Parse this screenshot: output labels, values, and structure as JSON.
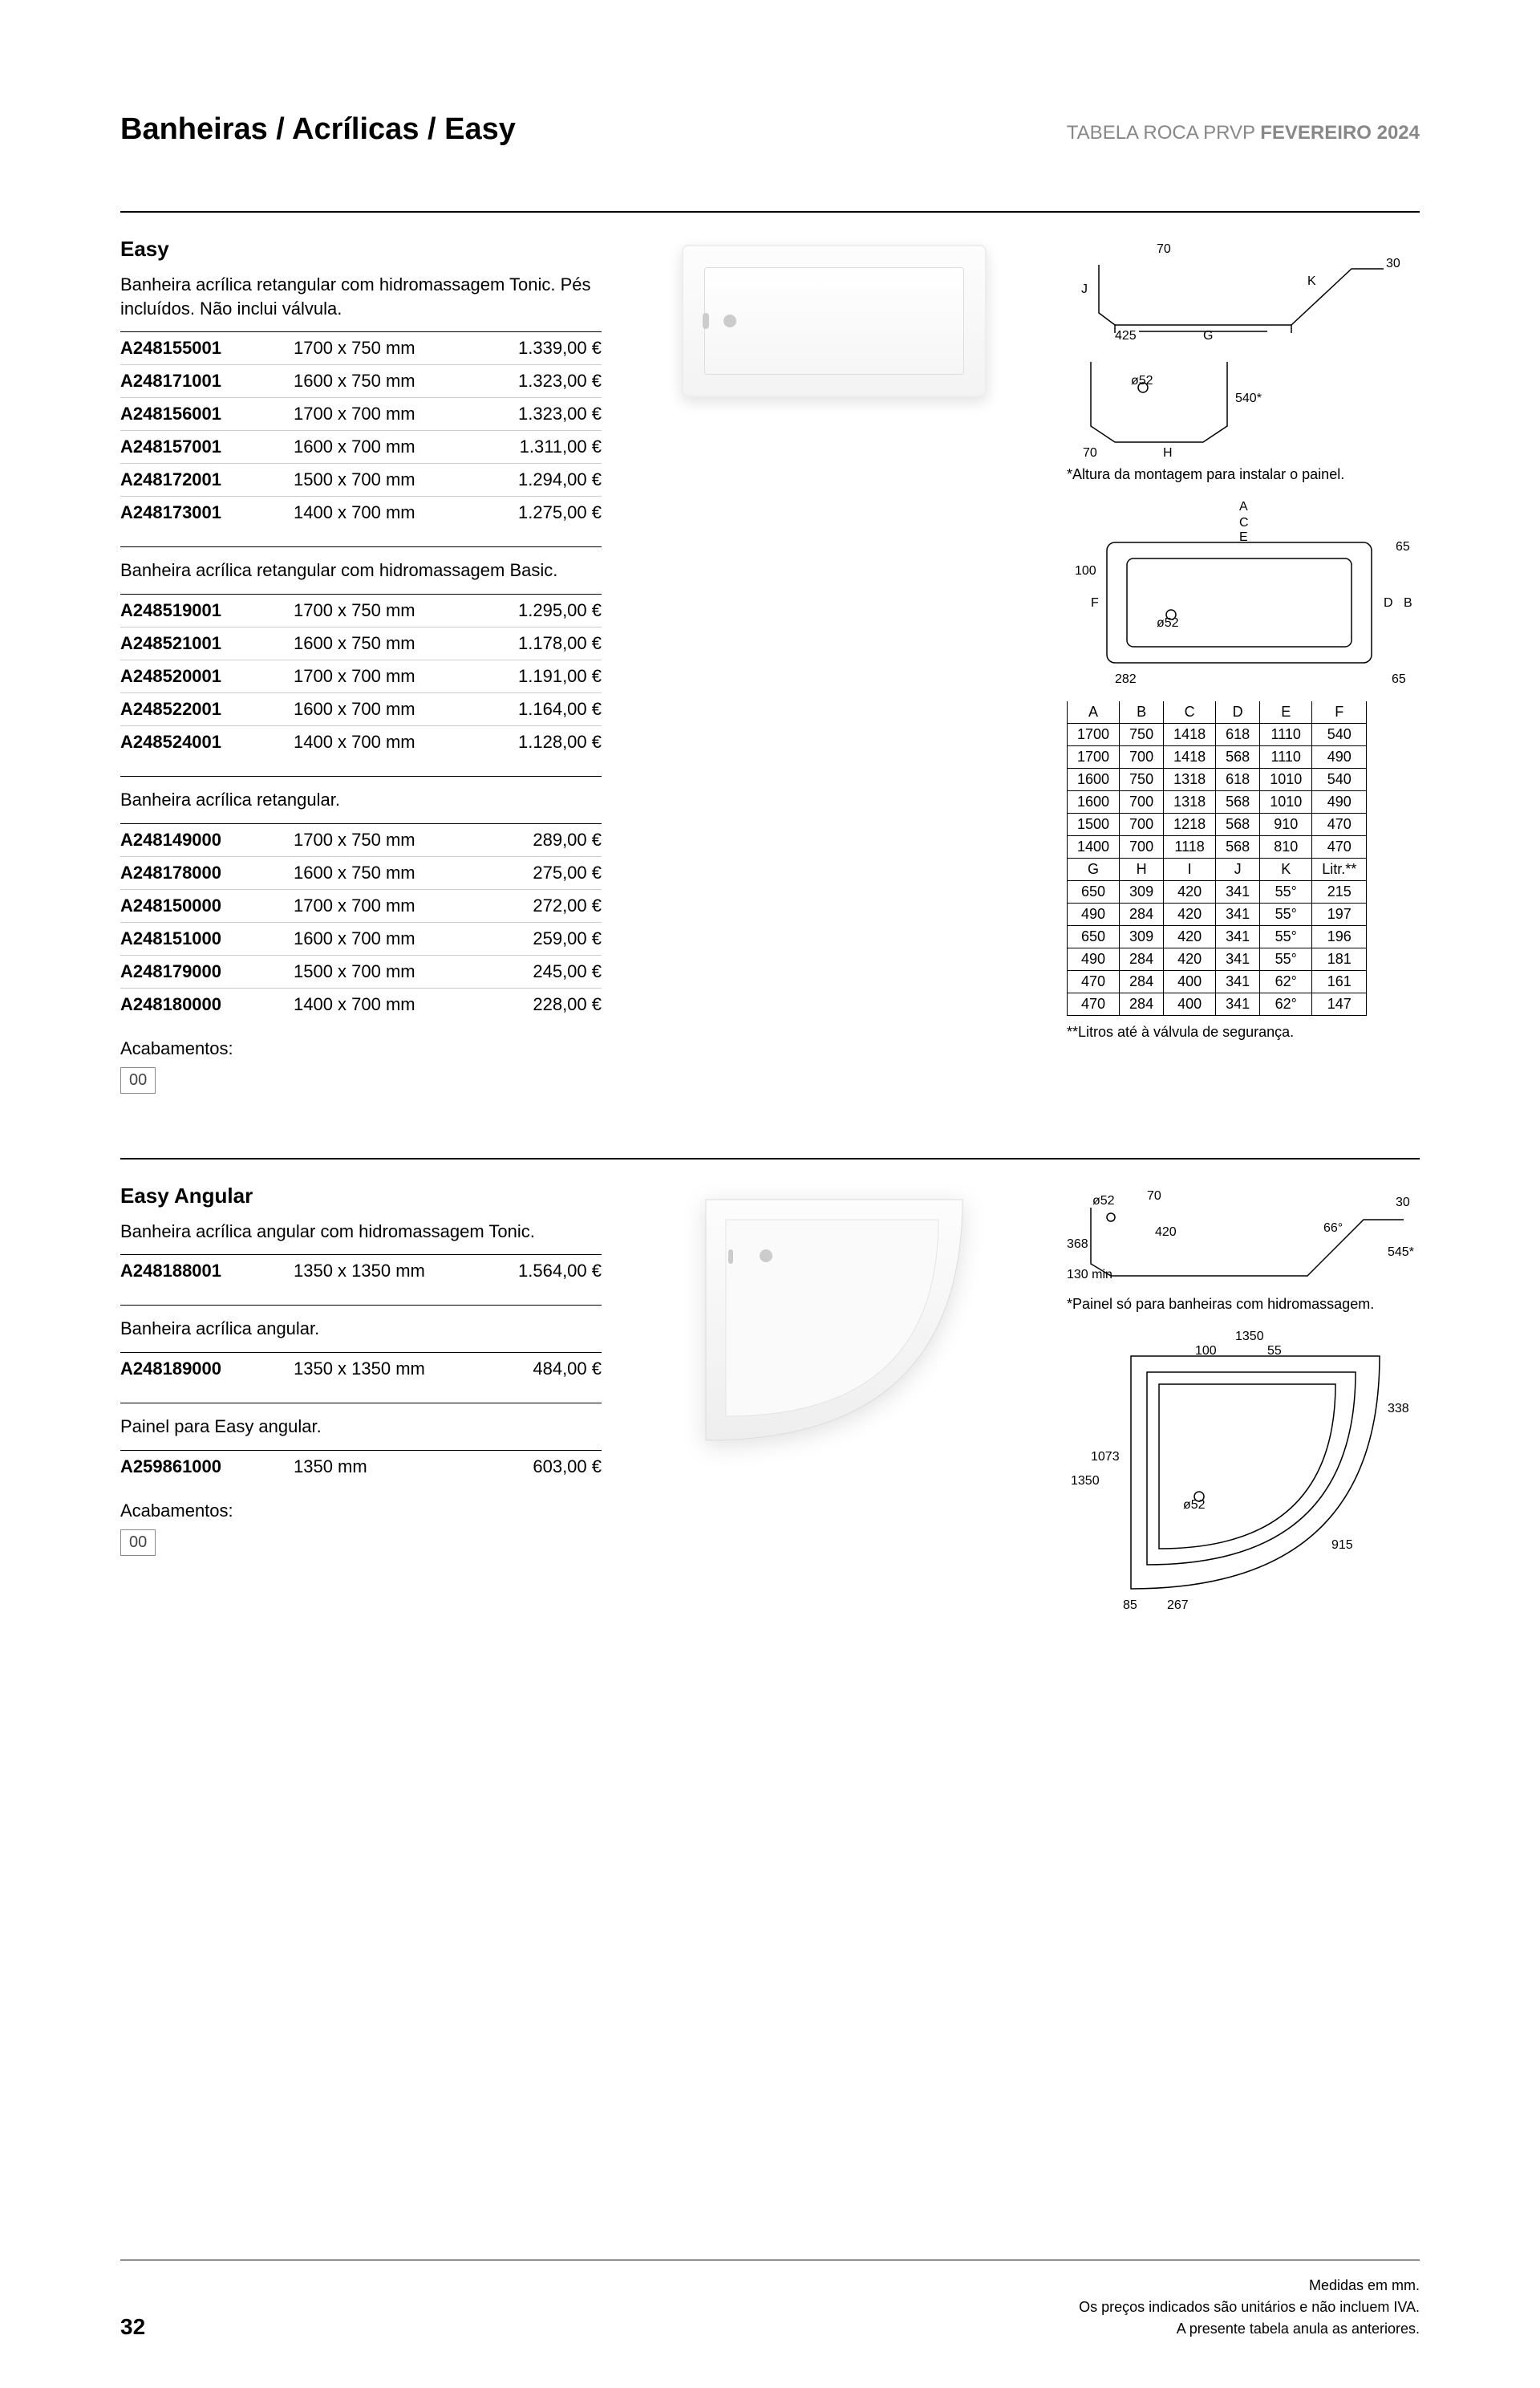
{
  "header": {
    "breadcrumb": "Banheiras / Acrílicas / Easy",
    "right_prefix": "TABELA ROCA PRVP ",
    "right_bold": "FEVEREIRO 2024"
  },
  "section_easy": {
    "title": "Easy",
    "groups": [
      {
        "desc": "Banheira acrílica retangular com hidromassagem Tonic. Pés incluídos. Não inclui válvula.",
        "rows": [
          {
            "ref": "A248155001",
            "dim": "1700 x 750 mm",
            "price": "1.339,00 €"
          },
          {
            "ref": "A248171001",
            "dim": "1600 x 750 mm",
            "price": "1.323,00 €"
          },
          {
            "ref": "A248156001",
            "dim": "1700 x 700 mm",
            "price": "1.323,00 €"
          },
          {
            "ref": "A248157001",
            "dim": "1600 x 700 mm",
            "price": "1.311,00 €"
          },
          {
            "ref": "A248172001",
            "dim": "1500 x 700 mm",
            "price": "1.294,00 €"
          },
          {
            "ref": "A248173001",
            "dim": "1400 x 700 mm",
            "price": "1.275,00 €"
          }
        ]
      },
      {
        "desc": "Banheira acrílica retangular com hidromassagem Basic.",
        "rows": [
          {
            "ref": "A248519001",
            "dim": "1700 x 750 mm",
            "price": "1.295,00 €"
          },
          {
            "ref": "A248521001",
            "dim": "1600 x 750 mm",
            "price": "1.178,00 €"
          },
          {
            "ref": "A248520001",
            "dim": "1700 x 700 mm",
            "price": "1.191,00 €"
          },
          {
            "ref": "A248522001",
            "dim": "1600 x 700 mm",
            "price": "1.164,00 €"
          },
          {
            "ref": "A248524001",
            "dim": "1400 x 700 mm",
            "price": "1.128,00 €"
          }
        ]
      },
      {
        "desc": "Banheira acrílica retangular.",
        "rows": [
          {
            "ref": "A248149000",
            "dim": "1700 x 750 mm",
            "price": "289,00 €"
          },
          {
            "ref": "A248178000",
            "dim": "1600 x 750 mm",
            "price": "275,00 €"
          },
          {
            "ref": "A248150000",
            "dim": "1700 x 700 mm",
            "price": "272,00 €"
          },
          {
            "ref": "A248151000",
            "dim": "1600 x 700 mm",
            "price": "259,00 €"
          },
          {
            "ref": "A248179000",
            "dim": "1500 x 700 mm",
            "price": "245,00 €"
          },
          {
            "ref": "A248180000",
            "dim": "1400 x 700 mm",
            "price": "228,00 €"
          }
        ]
      }
    ],
    "finishes_label": "Acabamentos:",
    "finishes": [
      "00"
    ],
    "diagram": {
      "caption1": "*Altura da montagem para instalar o painel.",
      "labels": {
        "top70": "70",
        "right30": "30",
        "J": "J",
        "K": "K",
        "left425": "425",
        "G": "G",
        "o52": "ø52",
        "h540": "540*",
        "bottom70": "70",
        "H": "H",
        "left100": "100",
        "A": "A",
        "C": "C",
        "E": "E",
        "right65": "65",
        "D": "D",
        "B": "B",
        "F": "F",
        "left282": "282",
        "bottom65": "65"
      },
      "dim_headers1": [
        "A",
        "B",
        "C",
        "D",
        "E",
        "F"
      ],
      "dim_rows1": [
        [
          "1700",
          "750",
          "1418",
          "618",
          "1110",
          "540"
        ],
        [
          "1700",
          "700",
          "1418",
          "568",
          "1110",
          "490"
        ],
        [
          "1600",
          "750",
          "1318",
          "618",
          "1010",
          "540"
        ],
        [
          "1600",
          "700",
          "1318",
          "568",
          "1010",
          "490"
        ],
        [
          "1500",
          "700",
          "1218",
          "568",
          "910",
          "470"
        ],
        [
          "1400",
          "700",
          "1118",
          "568",
          "810",
          "470"
        ]
      ],
      "dim_headers2": [
        "G",
        "H",
        "I",
        "J",
        "K",
        "Litr.**"
      ],
      "dim_rows2": [
        [
          "650",
          "309",
          "420",
          "341",
          "55°",
          "215"
        ],
        [
          "490",
          "284",
          "420",
          "341",
          "55°",
          "197"
        ],
        [
          "650",
          "309",
          "420",
          "341",
          "55°",
          "196"
        ],
        [
          "490",
          "284",
          "420",
          "341",
          "55°",
          "181"
        ],
        [
          "470",
          "284",
          "400",
          "341",
          "62°",
          "161"
        ],
        [
          "470",
          "284",
          "400",
          "341",
          "62°",
          "147"
        ]
      ],
      "footnote": "**Litros até à válvula de segurança."
    }
  },
  "section_angular": {
    "title": "Easy Angular",
    "groups": [
      {
        "desc": "Banheira acrílica angular com hidromassagem Tonic.",
        "rows": [
          {
            "ref": "A248188001",
            "dim": "1350 x 1350 mm",
            "price": "1.564,00 €"
          }
        ]
      },
      {
        "desc": "Banheira acrílica angular.",
        "rows": [
          {
            "ref": "A248189000",
            "dim": "1350 x 1350 mm",
            "price": "484,00 €"
          }
        ]
      },
      {
        "desc": "Painel para Easy angular.",
        "rows": [
          {
            "ref": "A259861000",
            "dim": "1350 mm",
            "price": "603,00 €"
          }
        ]
      }
    ],
    "finishes_label": "Acabamentos:",
    "finishes": [
      "00"
    ],
    "diagram": {
      "caption1": "*Painel só para banheiras com hidromassagem.",
      "labels": {
        "o52": "ø52",
        "top70": "70",
        "right30": "30",
        "h420": "420",
        "ang66": "66°",
        "h545": "545*",
        "left368": "368",
        "min130": "130 min",
        "w1350": "1350",
        "o100": "100",
        "o55": "55",
        "r338": "338",
        "h1073": "1073",
        "h1350": "1350",
        "r915": "915",
        "b85": "85",
        "b267": "267"
      }
    }
  },
  "footer": {
    "page": "32",
    "line1": "Medidas em mm.",
    "line2": "Os preços indicados são unitários e não incluem IVA.",
    "line3": "A presente tabela anula as anteriores."
  }
}
